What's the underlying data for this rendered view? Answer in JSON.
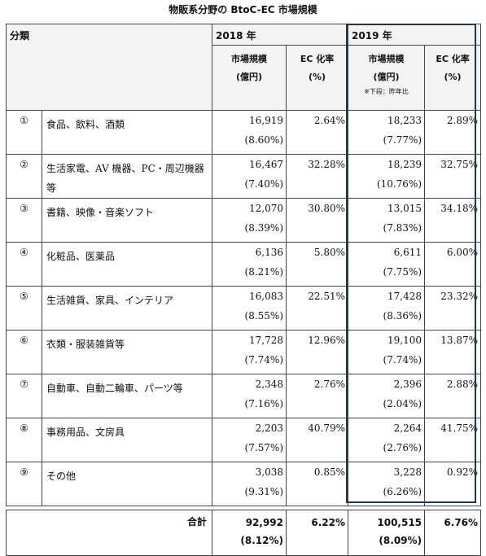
{
  "title": "物販系分野の BtoC-EC 市場規模",
  "header": {
    "category": "分類",
    "year2018": "2018 年",
    "year2019": "2019 年",
    "market_size_line1": "市場規模",
    "market_size_line2": "(億円)",
    "ec_rate_line1": "EC 化率",
    "ec_rate_line2": "(%)",
    "note": "※下段：昨年比"
  },
  "rows": [
    {
      "num": "①",
      "label": "食品、飲料、酒類",
      "v2018": "16,919",
      "g2018": "(8.60%)",
      "r2018": "2.64%",
      "v2019": "18,233",
      "g2019": "(7.77%)",
      "r2019": "2.89%"
    },
    {
      "num": "②",
      "label": "生活家電、AV 機器、PC・周辺機器等",
      "v2018": "16,467",
      "g2018": "(7.40%)",
      "r2018": "32.28%",
      "v2019": "18,239",
      "g2019": "(10.76%)",
      "r2019": "32.75%"
    },
    {
      "num": "③",
      "label": "書籍、映像・音楽ソフト",
      "v2018": "12,070",
      "g2018": "(8.39%)",
      "r2018": "30.80%",
      "v2019": "13,015",
      "g2019": "(7.83%)",
      "r2019": "34.18%"
    },
    {
      "num": "④",
      "label": "化粧品、医薬品",
      "v2018": "6,136",
      "g2018": "(8.21%)",
      "r2018": "5.80%",
      "v2019": "6,611",
      "g2019": "(7.75%)",
      "r2019": "6.00%"
    },
    {
      "num": "⑤",
      "label": "生活雑貨、家具、インテリア",
      "v2018": "16,083",
      "g2018": "(8.55%)",
      "r2018": "22.51%",
      "v2019": "17,428",
      "g2019": "(8.36%)",
      "r2019": "23.32%"
    },
    {
      "num": "⑥",
      "label": "衣類・服装雑貨等",
      "v2018": "17,728",
      "g2018": "(7.74%)",
      "r2018": "12.96%",
      "v2019": "19,100",
      "g2019": "(7.74%)",
      "r2019": "13.87%"
    },
    {
      "num": "⑦",
      "label": "自動車、自動二輪車、パーツ等",
      "v2018": "2,348",
      "g2018": "(7.16%)",
      "r2018": "2.76%",
      "v2019": "2,396",
      "g2019": "(2.04%)",
      "r2019": "2.88%"
    },
    {
      "num": "⑧",
      "label": "事務用品、文房具",
      "v2018": "2,203",
      "g2018": "(7.57%)",
      "r2018": "40.79%",
      "v2019": "2,264",
      "g2019": "(2.76%)",
      "r2019": "41.75%"
    },
    {
      "num": "⑨",
      "label": "その他",
      "v2018": "3,038",
      "g2018": "(9.31%)",
      "r2018": "0.85%",
      "v2019": "3,228",
      "g2019": "(6.26%)",
      "r2019": "0.92%"
    }
  ],
  "total": {
    "label": "合計",
    "v2018": "92,992",
    "g2018": "(8.12%)",
    "r2018": "6.22%",
    "v2019": "100,515",
    "g2019": "(8.09%)",
    "r2019": "6.76%"
  },
  "colors": {
    "highlight_border": "#1f3550",
    "header_bg": "#f3f3f3"
  }
}
